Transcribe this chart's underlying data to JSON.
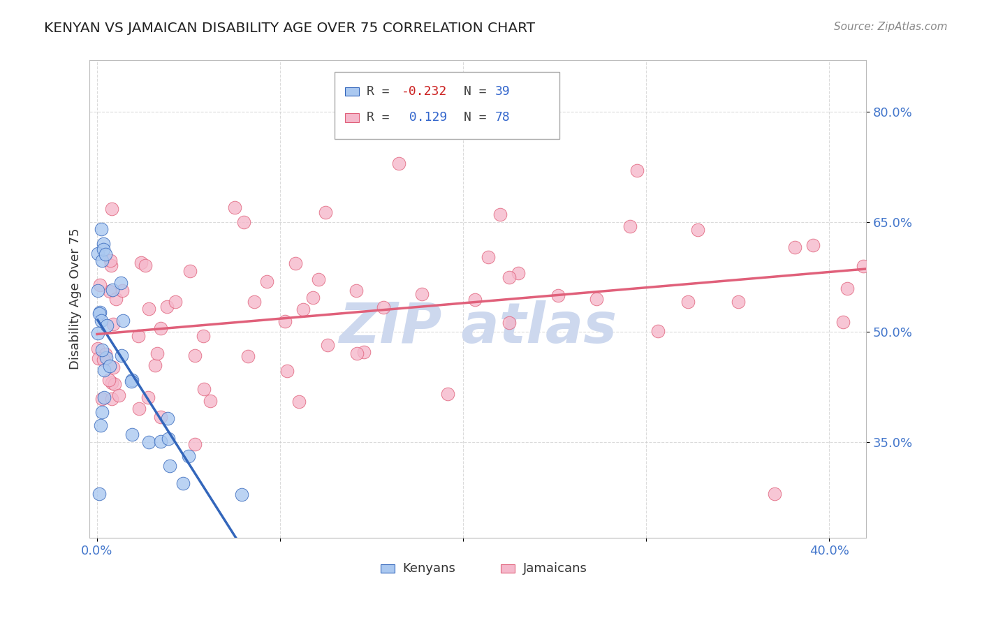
{
  "title": "KENYAN VS JAMAICAN DISABILITY AGE OVER 75 CORRELATION CHART",
  "source": "Source: ZipAtlas.com",
  "ylabel": "Disability Age Over 75",
  "kenyan_R": -0.232,
  "kenyan_N": 39,
  "jamaican_R": 0.129,
  "jamaican_N": 78,
  "kenyan_color": "#aac8f0",
  "jamaican_color": "#f5b8cb",
  "kenyan_line_color": "#3366bb",
  "jamaican_line_color": "#e0607a",
  "background_color": "#ffffff",
  "grid_color": "#cccccc",
  "watermark_color": "#cdd8ee",
  "xlim": [
    -0.004,
    0.42
  ],
  "ylim": [
    0.22,
    0.87
  ],
  "yticks": [
    0.35,
    0.5,
    0.65,
    0.8
  ],
  "ytick_labels": [
    "35.0%",
    "50.0%",
    "65.0%",
    "80.0%"
  ],
  "xticks": [
    0.0,
    0.1,
    0.2,
    0.3,
    0.4
  ],
  "xtick_labels": [
    "0.0%",
    "",
    "",
    "",
    "40.0%"
  ]
}
